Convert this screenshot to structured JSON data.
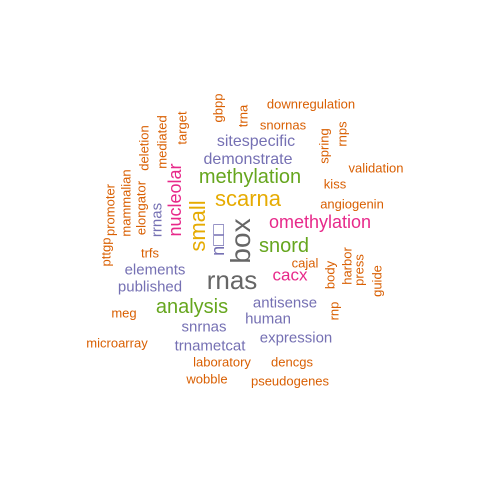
{
  "colors": {
    "orange": "#d95f02",
    "green": "#66a61e",
    "magenta": "#e7298a",
    "purple": "#7570b3",
    "gold": "#e6ab02",
    "grey": "#666666"
  },
  "words": [
    {
      "text": "rnas",
      "color": "grey",
      "weight": 26
    },
    {
      "text": "box",
      "color": "grey",
      "weight": 28
    },
    {
      "text": "n□□",
      "color": "purple",
      "weight": 18
    },
    {
      "text": "scarna",
      "color": "gold",
      "weight": 22
    },
    {
      "text": "small",
      "color": "gold",
      "weight": 22
    },
    {
      "text": "methylation",
      "color": "green",
      "weight": 20
    },
    {
      "text": "analysis",
      "color": "green",
      "weight": 20
    },
    {
      "text": "snord",
      "color": "green",
      "weight": 20
    },
    {
      "text": "omethylation",
      "color": "magenta",
      "weight": 18
    },
    {
      "text": "nucleolar",
      "color": "magenta",
      "weight": 18
    },
    {
      "text": "cacx",
      "color": "magenta",
      "weight": 17
    },
    {
      "text": "sitespecific",
      "color": "purple",
      "weight": 16
    },
    {
      "text": "demonstrate",
      "color": "purple",
      "weight": 16
    },
    {
      "text": "elements",
      "color": "purple",
      "weight": 15
    },
    {
      "text": "published",
      "color": "purple",
      "weight": 15
    },
    {
      "text": "antisense",
      "color": "purple",
      "weight": 15
    },
    {
      "text": "human",
      "color": "purple",
      "weight": 15
    },
    {
      "text": "expression",
      "color": "purple",
      "weight": 15
    },
    {
      "text": "snrnas",
      "color": "purple",
      "weight": 15
    },
    {
      "text": "trnametcat",
      "color": "purple",
      "weight": 15
    },
    {
      "text": "rrnas",
      "color": "purple",
      "weight": 15
    },
    {
      "text": "downregulation",
      "color": "orange",
      "weight": 13
    },
    {
      "text": "snornas",
      "color": "orange",
      "weight": 13
    },
    {
      "text": "validation",
      "color": "orange",
      "weight": 13
    },
    {
      "text": "kiss",
      "color": "orange",
      "weight": 13
    },
    {
      "text": "angiogenin",
      "color": "orange",
      "weight": 13
    },
    {
      "text": "cajal",
      "color": "orange",
      "weight": 13
    },
    {
      "text": "meg",
      "color": "orange",
      "weight": 13
    },
    {
      "text": "microarray",
      "color": "orange",
      "weight": 13
    },
    {
      "text": "laboratory",
      "color": "orange",
      "weight": 13
    },
    {
      "text": "dencgs",
      "color": "orange",
      "weight": 13
    },
    {
      "text": "wobble",
      "color": "orange",
      "weight": 13
    },
    {
      "text": "pseudogenes",
      "color": "orange",
      "weight": 13
    },
    {
      "text": "trfs",
      "color": "orange",
      "weight": 13
    },
    {
      "text": "gbpp",
      "color": "orange",
      "weight": 13
    },
    {
      "text": "trna",
      "color": "orange",
      "weight": 13
    },
    {
      "text": "target",
      "color": "orange",
      "weight": 13
    },
    {
      "text": "mediated",
      "color": "orange",
      "weight": 13
    },
    {
      "text": "deletion",
      "color": "orange",
      "weight": 13
    },
    {
      "text": "elongator",
      "color": "orange",
      "weight": 13
    },
    {
      "text": "mammalian",
      "color": "orange",
      "weight": 13
    },
    {
      "text": "promoter",
      "color": "orange",
      "weight": 13
    },
    {
      "text": "pttgp",
      "color": "orange",
      "weight": 13
    },
    {
      "text": "spring",
      "color": "orange",
      "weight": 13
    },
    {
      "text": "rnps",
      "color": "orange",
      "weight": 13
    },
    {
      "text": "body",
      "color": "orange",
      "weight": 13
    },
    {
      "text": "harbor",
      "color": "orange",
      "weight": 13
    },
    {
      "text": "press",
      "color": "orange",
      "weight": 13
    },
    {
      "text": "guide",
      "color": "orange",
      "weight": 13
    },
    {
      "text": "rnp",
      "color": "orange",
      "weight": 13
    }
  ]
}
